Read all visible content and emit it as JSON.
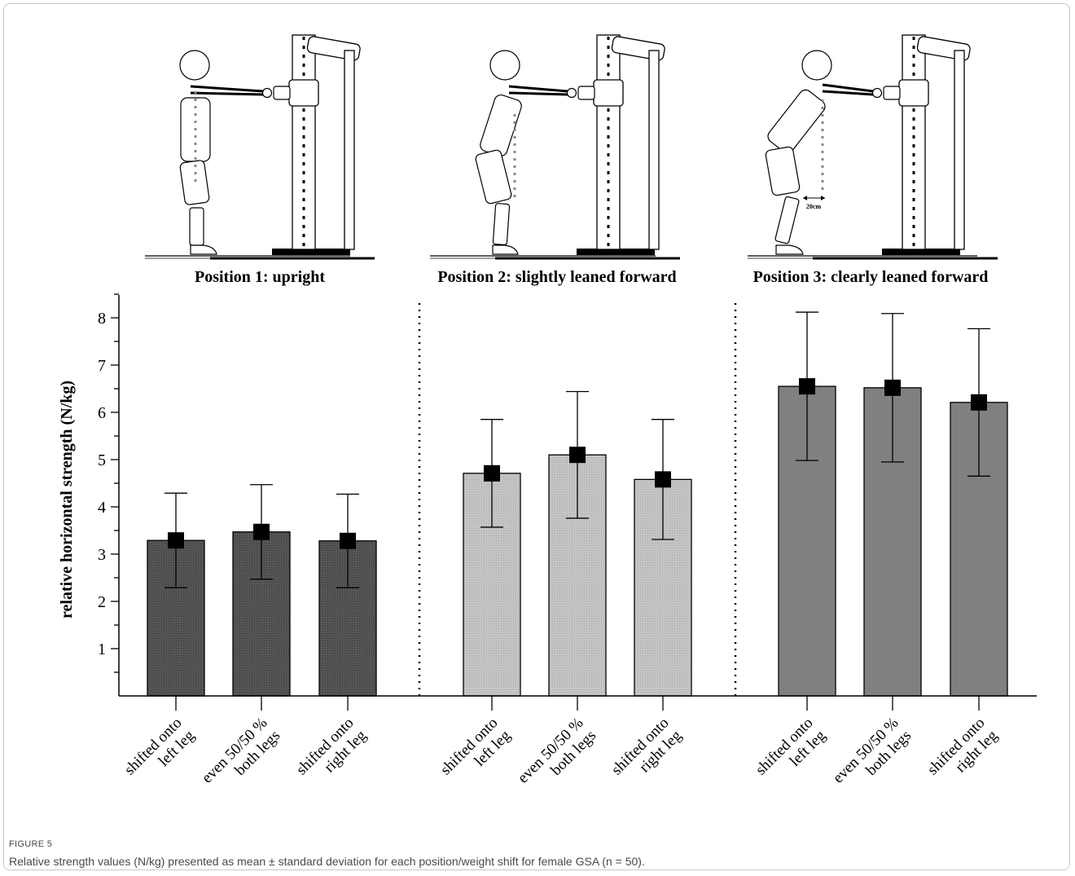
{
  "figure": {
    "label": "FIGURE 5",
    "caption": "Relative strength values (N/kg) presented as mean ± standard deviation for each position/weight shift for female GSA (n = 50)."
  },
  "panels": [
    {
      "title": "Position 1: upright"
    },
    {
      "title": "Position 2: slightly leaned forward"
    },
    {
      "title": "Position 3: clearly leaned forward",
      "distance_label": "20cm"
    }
  ],
  "chart_data": {
    "type": "bar",
    "title": "",
    "xlabel": "",
    "ylabel": "relative horizontal strength (N/kg)",
    "ylim": [
      0,
      8.5
    ],
    "yticks": [
      1,
      2,
      3,
      4,
      5,
      6,
      7,
      8
    ],
    "grid": false,
    "categories": [
      [
        "shifted onto",
        "left leg"
      ],
      [
        "even 50/50 %",
        "both legs"
      ],
      [
        "shifted onto",
        "right leg"
      ],
      [
        "shifted onto",
        "left leg"
      ],
      [
        "even 50/50 %",
        "both legs"
      ],
      [
        "shifted onto",
        "right leg"
      ],
      [
        "shifted onto",
        "left leg"
      ],
      [
        "even 50/50 %",
        "both legs"
      ],
      [
        "shifted onto",
        "right leg"
      ]
    ],
    "groups": [
      {
        "panel": "Position 1: upright",
        "color": "#4d4d4d",
        "pattern": "crosshatch"
      },
      {
        "panel": "Position 2: slightly leaned forward",
        "color": "#bdbdbd",
        "pattern": "dots"
      },
      {
        "panel": "Position 3: clearly leaned forward",
        "color": "#808080",
        "pattern": "solid"
      }
    ],
    "values": [
      3.29,
      3.47,
      3.28,
      4.71,
      5.1,
      4.58,
      6.55,
      6.52,
      6.21
    ],
    "errors": [
      1.0,
      1.0,
      0.99,
      1.14,
      1.34,
      1.27,
      1.57,
      1.57,
      1.56
    ],
    "group_separators_after": [
      3,
      6
    ],
    "colors": {
      "marker": "#000000",
      "axis": "#000000"
    }
  }
}
